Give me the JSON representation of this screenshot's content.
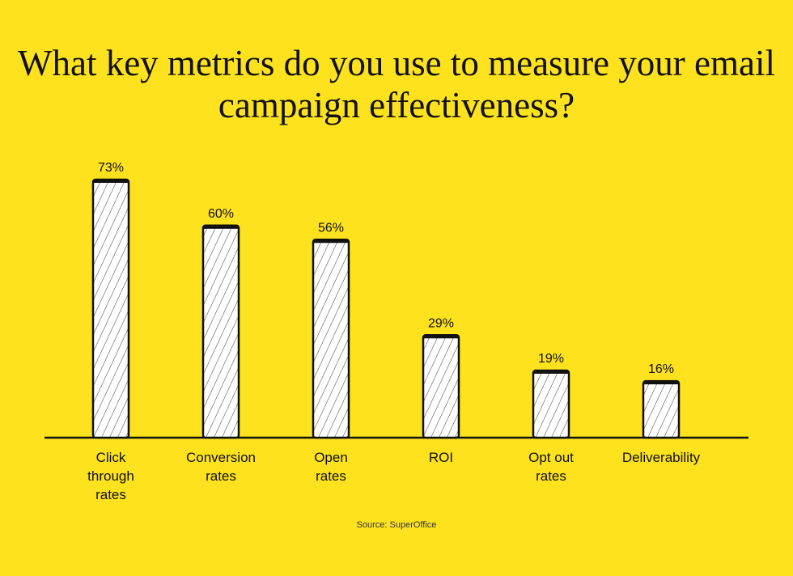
{
  "chart_data": {
    "type": "bar",
    "title": "What key metrics do you use to measure your email campaign effectiveness?",
    "categories": [
      "Click through rates",
      "Conversion rates",
      "Open rates",
      "ROI",
      "Opt out rates",
      "Deliverability"
    ],
    "values": [
      73,
      60,
      56,
      29,
      19,
      16
    ],
    "value_labels": [
      "73%",
      "60%",
      "56%",
      "29%",
      "19%",
      "16%"
    ],
    "color": "#ffffff",
    "background": "#fde21d",
    "source": "Source: SuperOffice"
  }
}
